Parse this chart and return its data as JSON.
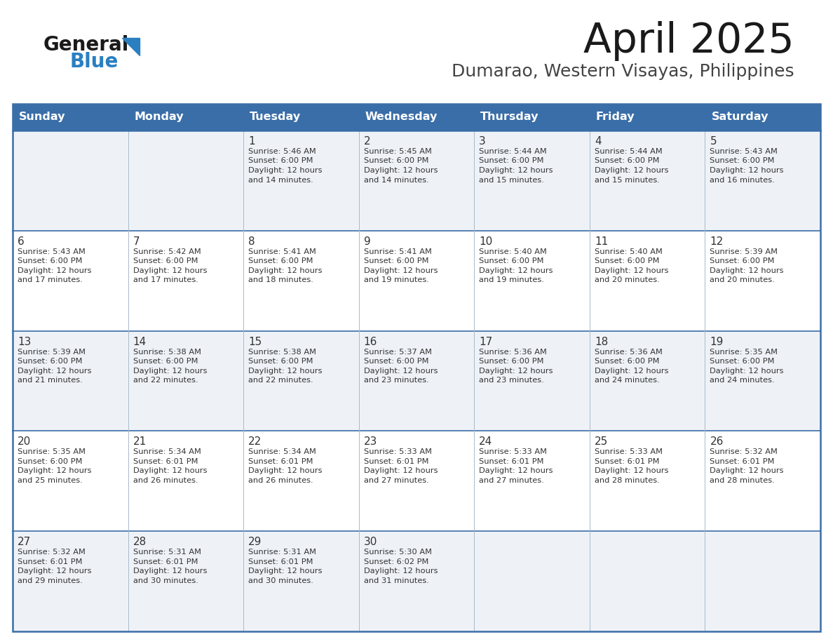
{
  "title": "April 2025",
  "subtitle": "Dumarao, Western Visayas, Philippines",
  "header_bg_color": "#3a6ea8",
  "header_text_color": "#ffffff",
  "day_names": [
    "Sunday",
    "Monday",
    "Tuesday",
    "Wednesday",
    "Thursday",
    "Friday",
    "Saturday"
  ],
  "row_bg_even": "#eef2f7",
  "row_bg_odd": "#ffffff",
  "border_color": "#3a6ea8",
  "cell_border_color": "#aabbcc",
  "text_color": "#333333",
  "title_color": "#1a1a1a",
  "subtitle_color": "#444444",
  "logo_general_color": "#1a1a1a",
  "logo_blue_color": "#2a7fc1",
  "logo_triangle_color": "#2a7fc1",
  "calendar": [
    [
      {
        "day": "",
        "sunrise": "",
        "sunset": "",
        "daylight_min": ""
      },
      {
        "day": "",
        "sunrise": "",
        "sunset": "",
        "daylight_min": ""
      },
      {
        "day": "1",
        "sunrise": "5:46 AM",
        "sunset": "6:00 PM",
        "daylight_min": "14"
      },
      {
        "day": "2",
        "sunrise": "5:45 AM",
        "sunset": "6:00 PM",
        "daylight_min": "14"
      },
      {
        "day": "3",
        "sunrise": "5:44 AM",
        "sunset": "6:00 PM",
        "daylight_min": "15"
      },
      {
        "day": "4",
        "sunrise": "5:44 AM",
        "sunset": "6:00 PM",
        "daylight_min": "15"
      },
      {
        "day": "5",
        "sunrise": "5:43 AM",
        "sunset": "6:00 PM",
        "daylight_min": "16"
      }
    ],
    [
      {
        "day": "6",
        "sunrise": "5:43 AM",
        "sunset": "6:00 PM",
        "daylight_min": "17"
      },
      {
        "day": "7",
        "sunrise": "5:42 AM",
        "sunset": "6:00 PM",
        "daylight_min": "17"
      },
      {
        "day": "8",
        "sunrise": "5:41 AM",
        "sunset": "6:00 PM",
        "daylight_min": "18"
      },
      {
        "day": "9",
        "sunrise": "5:41 AM",
        "sunset": "6:00 PM",
        "daylight_min": "19"
      },
      {
        "day": "10",
        "sunrise": "5:40 AM",
        "sunset": "6:00 PM",
        "daylight_min": "19"
      },
      {
        "day": "11",
        "sunrise": "5:40 AM",
        "sunset": "6:00 PM",
        "daylight_min": "20"
      },
      {
        "day": "12",
        "sunrise": "5:39 AM",
        "sunset": "6:00 PM",
        "daylight_min": "20"
      }
    ],
    [
      {
        "day": "13",
        "sunrise": "5:39 AM",
        "sunset": "6:00 PM",
        "daylight_min": "21"
      },
      {
        "day": "14",
        "sunrise": "5:38 AM",
        "sunset": "6:00 PM",
        "daylight_min": "22"
      },
      {
        "day": "15",
        "sunrise": "5:38 AM",
        "sunset": "6:00 PM",
        "daylight_min": "22"
      },
      {
        "day": "16",
        "sunrise": "5:37 AM",
        "sunset": "6:00 PM",
        "daylight_min": "23"
      },
      {
        "day": "17",
        "sunrise": "5:36 AM",
        "sunset": "6:00 PM",
        "daylight_min": "23"
      },
      {
        "day": "18",
        "sunrise": "5:36 AM",
        "sunset": "6:00 PM",
        "daylight_min": "24"
      },
      {
        "day": "19",
        "sunrise": "5:35 AM",
        "sunset": "6:00 PM",
        "daylight_min": "24"
      }
    ],
    [
      {
        "day": "20",
        "sunrise": "5:35 AM",
        "sunset": "6:00 PM",
        "daylight_min": "25"
      },
      {
        "day": "21",
        "sunrise": "5:34 AM",
        "sunset": "6:01 PM",
        "daylight_min": "26"
      },
      {
        "day": "22",
        "sunrise": "5:34 AM",
        "sunset": "6:01 PM",
        "daylight_min": "26"
      },
      {
        "day": "23",
        "sunrise": "5:33 AM",
        "sunset": "6:01 PM",
        "daylight_min": "27"
      },
      {
        "day": "24",
        "sunrise": "5:33 AM",
        "sunset": "6:01 PM",
        "daylight_min": "27"
      },
      {
        "day": "25",
        "sunrise": "5:33 AM",
        "sunset": "6:01 PM",
        "daylight_min": "28"
      },
      {
        "day": "26",
        "sunrise": "5:32 AM",
        "sunset": "6:01 PM",
        "daylight_min": "28"
      }
    ],
    [
      {
        "day": "27",
        "sunrise": "5:32 AM",
        "sunset": "6:01 PM",
        "daylight_min": "29"
      },
      {
        "day": "28",
        "sunrise": "5:31 AM",
        "sunset": "6:01 PM",
        "daylight_min": "30"
      },
      {
        "day": "29",
        "sunrise": "5:31 AM",
        "sunset": "6:01 PM",
        "daylight_min": "30"
      },
      {
        "day": "30",
        "sunrise": "5:30 AM",
        "sunset": "6:02 PM",
        "daylight_min": "31"
      },
      {
        "day": "",
        "sunrise": "",
        "sunset": "",
        "daylight_min": ""
      },
      {
        "day": "",
        "sunrise": "",
        "sunset": "",
        "daylight_min": ""
      },
      {
        "day": "",
        "sunrise": "",
        "sunset": "",
        "daylight_min": ""
      }
    ]
  ]
}
